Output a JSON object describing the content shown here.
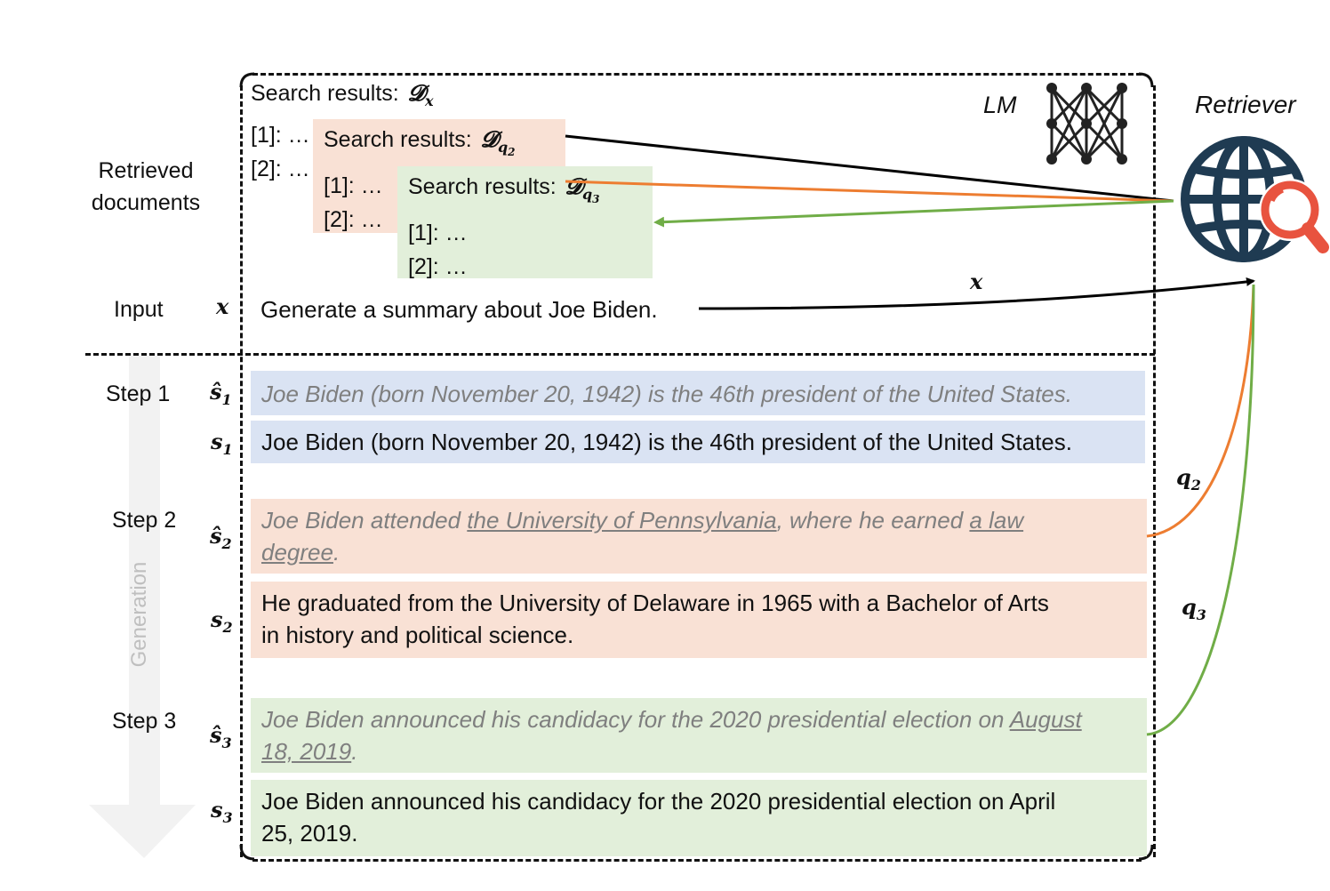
{
  "labels": {
    "retrieved_documents": "Retrieved\ndocuments",
    "input": "Input",
    "step1": "Step 1",
    "step2": "Step 2",
    "step3": "Step 3",
    "generation": "Generation",
    "lm": "LM",
    "retriever": "Retriever"
  },
  "symbols": {
    "x_input": "x",
    "x_edge": "x",
    "s_hat": "ŝ",
    "s": "s",
    "sub1": "1",
    "sub2": "2",
    "sub3": "3",
    "q": "q",
    "D": "𝓓"
  },
  "search_results": [
    {
      "prefix": "Search results:",
      "subscript": "x",
      "subsub": "",
      "items": [
        "[1]: …",
        "[2]: …"
      ],
      "color": "#ffffff"
    },
    {
      "prefix": "Search results:",
      "subscript": "q",
      "subsub": "2",
      "items": [
        "[1]: …",
        "[2]: …"
      ],
      "color": "#f9e1d5"
    },
    {
      "prefix": "Search results:",
      "subscript": "q",
      "subsub": "3",
      "items": [
        "[1]: …",
        "[2]: …"
      ],
      "color": "#e2efda"
    }
  ],
  "input_text": "Generate a summary about Joe Biden.",
  "steps": [
    {
      "draft": [
        "Joe Biden (born November 20, 1942) is the 46th president of the United States."
      ],
      "final": "Joe Biden (born November 20, 1942) is the 46th president of the United States.",
      "color": "#dae3f3"
    },
    {
      "draft_parts": [
        "Joe Biden attended ",
        "the University of Pennsylvania",
        ", where he earned ",
        "a law",
        " ",
        "degree",
        "."
      ],
      "final_lines": [
        "He graduated from the University of Delaware in 1965 with a Bachelor of Arts",
        "in history and political science."
      ],
      "color": "#f9e1d5"
    },
    {
      "draft_parts": [
        "Joe Biden announced his candidacy for the 2020 presidential election on ",
        "August",
        "18, 2019",
        "."
      ],
      "final_lines": [
        "Joe Biden announced his candidacy for the 2020 presidential election on April",
        "25, 2019."
      ],
      "color": "#e2efda"
    }
  ],
  "colors": {
    "orange_arrow": "#ed7d31",
    "green_arrow": "#70ad47",
    "globe": "#1f3b52",
    "magnifier": "#e8533f",
    "draft_text": "#7f7f7f",
    "generation_arrow": "#f2f2f2"
  },
  "icons": [
    "neural-network-icon",
    "globe-search-icon"
  ]
}
